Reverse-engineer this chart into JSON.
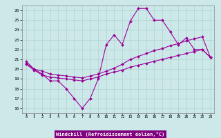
{
  "line1_x": [
    0,
    1,
    2,
    3,
    4,
    5,
    6,
    7,
    8,
    9,
    10,
    11,
    12,
    13,
    14,
    15,
    16,
    17,
    18,
    19,
    20,
    21,
    22,
    23
  ],
  "line1_y": [
    20.8,
    20.0,
    19.5,
    18.8,
    18.8,
    18.0,
    17.0,
    16.0,
    17.0,
    19.0,
    22.5,
    23.5,
    22.5,
    24.9,
    26.2,
    26.2,
    25.0,
    25.0,
    23.8,
    22.5,
    23.2,
    22.0,
    22.0,
    21.2
  ],
  "line2_x": [
    0,
    1,
    2,
    3,
    4,
    5,
    6,
    7,
    8,
    9,
    10,
    11,
    12,
    13,
    14,
    15,
    16,
    17,
    18,
    19,
    20,
    21,
    22,
    23
  ],
  "line2_y": [
    20.6,
    20.0,
    19.8,
    19.5,
    19.4,
    19.3,
    19.2,
    19.1,
    19.3,
    19.5,
    19.8,
    20.1,
    20.5,
    21.0,
    21.3,
    21.6,
    21.9,
    22.1,
    22.4,
    22.6,
    22.9,
    23.1,
    23.3,
    21.2
  ],
  "line3_x": [
    0,
    1,
    2,
    3,
    4,
    5,
    6,
    7,
    8,
    9,
    10,
    11,
    12,
    13,
    14,
    15,
    16,
    17,
    18,
    19,
    20,
    21,
    22,
    23
  ],
  "line3_y": [
    20.5,
    19.9,
    19.4,
    19.2,
    19.1,
    19.0,
    18.9,
    18.8,
    19.0,
    19.2,
    19.5,
    19.7,
    19.9,
    20.2,
    20.4,
    20.6,
    20.8,
    21.0,
    21.2,
    21.4,
    21.6,
    21.8,
    22.0,
    21.2
  ],
  "color": "#990099",
  "bg_color": "#cce8e8",
  "grid_color": "#aacccc",
  "xlabel": "Windchill (Refroidissement éolien,°C)",
  "xlabel_bg": "#800080",
  "xlabel_color": "#ffffff",
  "ylim": [
    15.5,
    26.5
  ],
  "xlim": [
    -0.5,
    23.5
  ],
  "yticks": [
    16,
    17,
    18,
    19,
    20,
    21,
    22,
    23,
    24,
    25,
    26
  ],
  "xticks": [
    0,
    1,
    2,
    3,
    4,
    5,
    6,
    7,
    8,
    9,
    10,
    11,
    12,
    13,
    14,
    15,
    16,
    17,
    18,
    19,
    20,
    21,
    22,
    23
  ],
  "marker": "D",
  "markersize": 2.0,
  "linewidth": 0.8
}
